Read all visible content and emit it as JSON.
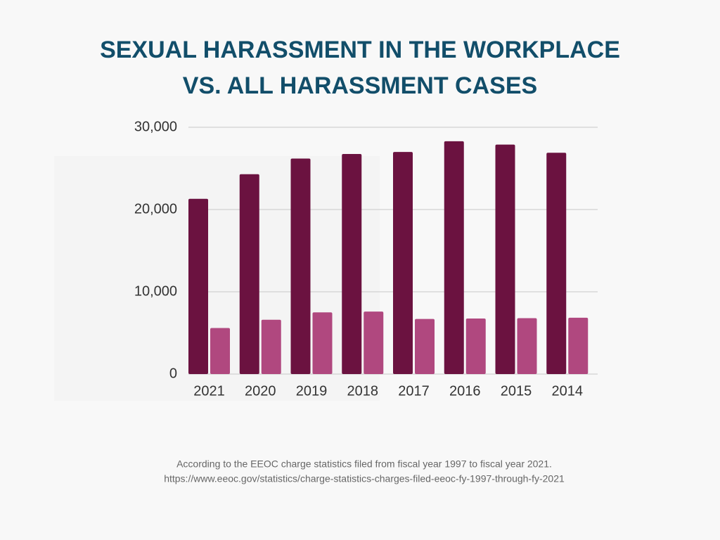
{
  "chart_data": {
    "type": "bar",
    "title": [
      "SEXUAL HARASSMENT IN THE WORKPLACE",
      "VS. ALL HARASSMENT CASES"
    ],
    "categories": [
      "2021",
      "2020",
      "2019",
      "2018",
      "2017",
      "2016",
      "2015",
      "2014"
    ],
    "series": [
      {
        "color": "#6b1240",
        "values": [
          21300,
          24300,
          26200,
          26750,
          27000,
          28300,
          27900,
          26900
        ]
      },
      {
        "color": "#b0487f",
        "values": [
          5600,
          6600,
          7500,
          7600,
          6700,
          6750,
          6800,
          6850
        ]
      }
    ],
    "ylim": [
      0,
      30000
    ],
    "yticks": [
      0,
      {
        "value": 10000,
        "label": "10,000"
      },
      {
        "value": 20000,
        "label": "20,000"
      },
      {
        "value": 30000,
        "label": "30,000"
      }
    ],
    "grid": true,
    "notes": [
      "According to the EEOC charge statistics filed from fiscal year 1997 to fiscal year 2021.",
      "https://www.eeoc.gov/statistics/charge-statistics-charges-filed-eeoc-fy-1997-through-fy-2021"
    ]
  }
}
